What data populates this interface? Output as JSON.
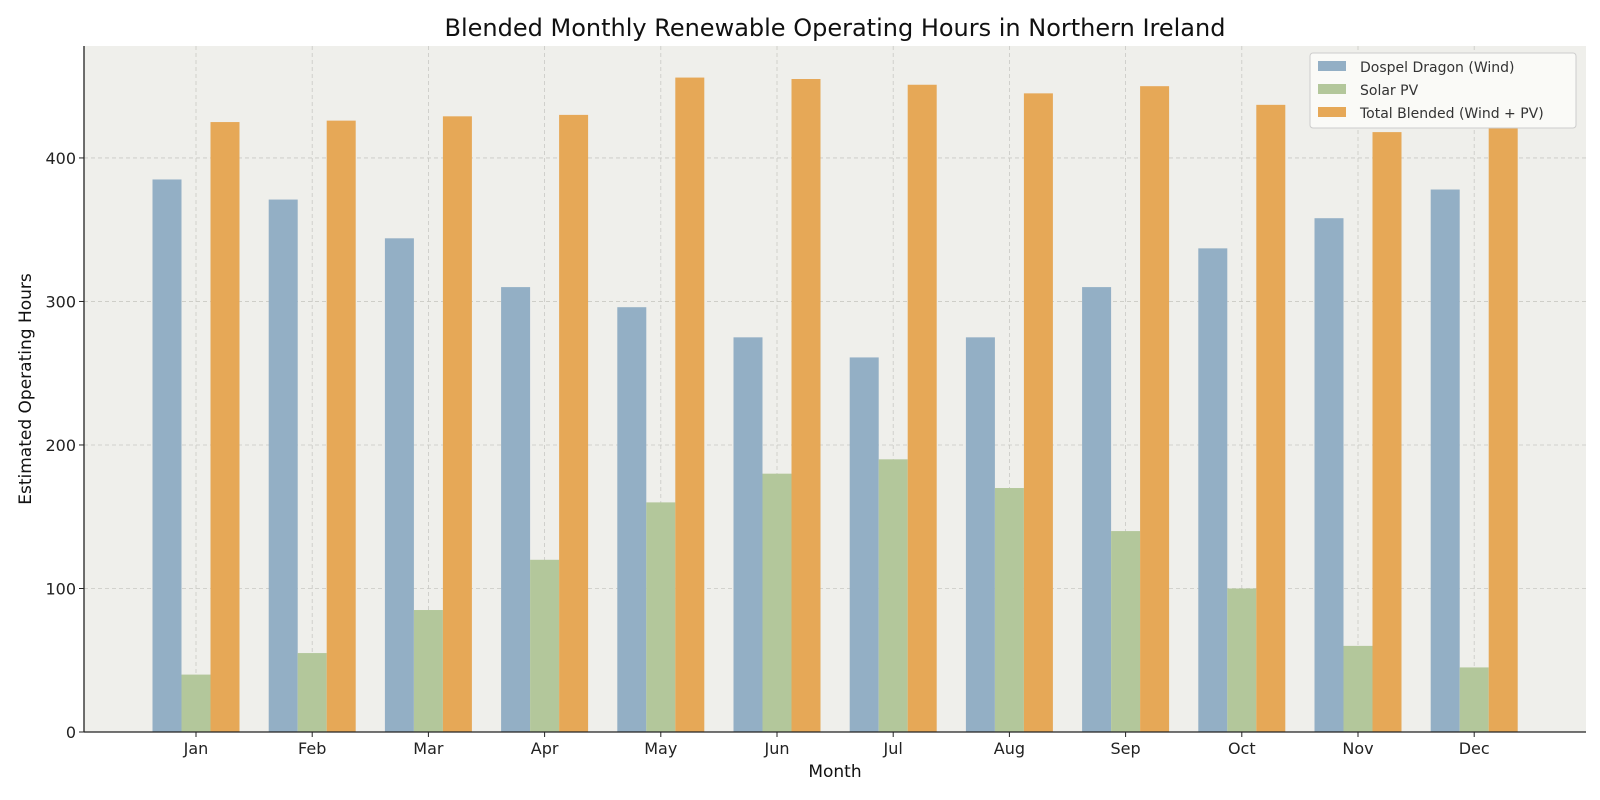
{
  "chart_data": {
    "type": "bar",
    "title": "Blended Monthly Renewable Operating Hours in Northern Ireland",
    "xlabel": "Month",
    "ylabel": "Estimated Operating Hours",
    "categories": [
      "Jan",
      "Feb",
      "Mar",
      "Apr",
      "May",
      "Jun",
      "Jul",
      "Aug",
      "Sep",
      "Oct",
      "Nov",
      "Dec"
    ],
    "yticks": [
      0,
      100,
      200,
      300,
      400
    ],
    "ylim": [
      0,
      478
    ],
    "grid": true,
    "legend_position": "top-right",
    "series": [
      {
        "name": "Dospel Dragon (Wind)",
        "color": "#93afc5",
        "values": [
          385,
          371,
          344,
          310,
          296,
          275,
          261,
          275,
          310,
          337,
          358,
          378
        ]
      },
      {
        "name": "Solar PV",
        "color": "#b3c79b",
        "values": [
          40,
          55,
          85,
          120,
          160,
          180,
          190,
          170,
          140,
          100,
          60,
          45
        ]
      },
      {
        "name": "Total Blended (Wind + PV)",
        "color": "#e6a857",
        "values": [
          425,
          426,
          429,
          430,
          456,
          455,
          451,
          445,
          450,
          437,
          418,
          423
        ]
      }
    ]
  }
}
